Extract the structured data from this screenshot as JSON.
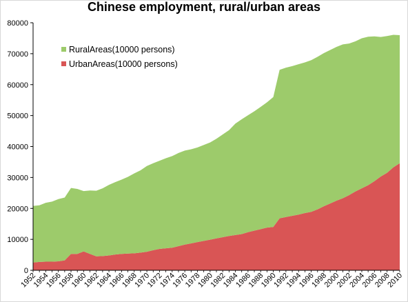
{
  "chart_data": {
    "type": "area",
    "stacked": true,
    "title": "Chinese employment, rural/urban areas",
    "xlabel": "",
    "ylabel": "",
    "ylim": [
      0,
      80000
    ],
    "yticks": [
      0,
      10000,
      20000,
      30000,
      40000,
      50000,
      60000,
      70000,
      80000
    ],
    "grid": false,
    "legend_position": "top-left",
    "x": [
      1952,
      1953,
      1954,
      1955,
      1956,
      1957,
      1958,
      1959,
      1960,
      1961,
      1962,
      1963,
      1964,
      1965,
      1966,
      1967,
      1968,
      1969,
      1970,
      1971,
      1972,
      1973,
      1974,
      1975,
      1976,
      1977,
      1978,
      1979,
      1980,
      1981,
      1982,
      1983,
      1984,
      1985,
      1986,
      1987,
      1988,
      1989,
      1990,
      1991,
      1992,
      1993,
      1994,
      1995,
      1996,
      1997,
      1998,
      1999,
      2000,
      2001,
      2002,
      2003,
      2004,
      2005,
      2006,
      2007,
      2008,
      2009,
      2010
    ],
    "xticks": [
      1952,
      1954,
      1956,
      1958,
      1960,
      1962,
      1964,
      1966,
      1968,
      1970,
      1972,
      1974,
      1976,
      1978,
      1980,
      1982,
      1984,
      1986,
      1988,
      1990,
      1992,
      1994,
      1996,
      1998,
      2000,
      2002,
      2004,
      2006,
      2008,
      2010
    ],
    "series": [
      {
        "name": "UrbanAreas(10000 persons)",
        "color": "#d95555",
        "values": [
          2500,
          2700,
          2800,
          2800,
          2900,
          3200,
          5300,
          5300,
          6100,
          5300,
          4500,
          4600,
          4800,
          5100,
          5300,
          5400,
          5500,
          5700,
          6000,
          6500,
          6900,
          7100,
          7300,
          7800,
          8300,
          8700,
          9100,
          9500,
          9900,
          10300,
          10700,
          11100,
          11400,
          11700,
          12300,
          12800,
          13300,
          13800,
          14000,
          16800,
          17200,
          17600,
          18000,
          18500,
          18900,
          19700,
          20700,
          21600,
          22500,
          23300,
          24300,
          25500,
          26500,
          27500,
          28800,
          30300,
          31500,
          33300,
          34600
        ]
      },
      {
        "name": "RuralAreas(10000 persons)",
        "color": "#9dcb6b",
        "values": [
          18300,
          18300,
          19000,
          19400,
          20100,
          20300,
          21300,
          21000,
          19500,
          20500,
          21200,
          21900,
          22800,
          23400,
          24000,
          24800,
          25800,
          26600,
          27700,
          28100,
          28500,
          29100,
          29600,
          30100,
          30400,
          30400,
          30600,
          31000,
          31400,
          32200,
          33200,
          34200,
          36000,
          37100,
          37800,
          38600,
          39500,
          40500,
          42000,
          48000,
          48300,
          48400,
          48600,
          48700,
          49000,
          49300,
          49500,
          49600,
          49700,
          49700,
          49000,
          48500,
          48500,
          48000,
          46800,
          45100,
          44200,
          42800,
          41400
        ]
      }
    ]
  }
}
